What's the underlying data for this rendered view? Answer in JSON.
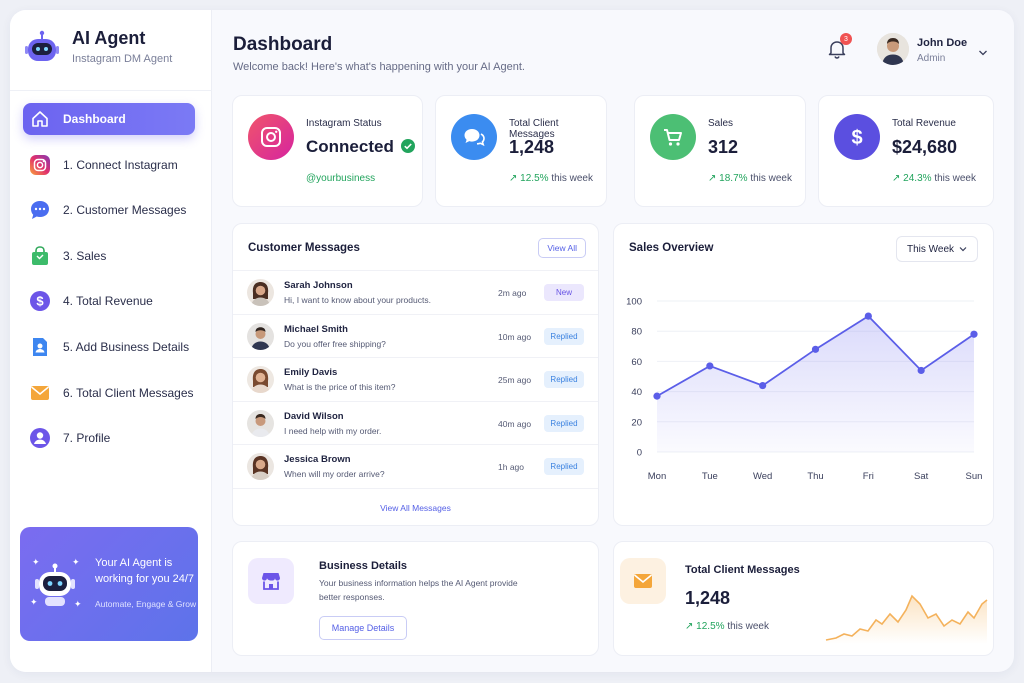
{
  "brand": {
    "title": "AI Agent",
    "subtitle": "Instagram DM Agent"
  },
  "sidebar": {
    "items": [
      {
        "label": "Dashboard",
        "icon": "home-icon",
        "active": true
      },
      {
        "label": "1. Connect Instagram",
        "icon": "instagram-icon",
        "active": false
      },
      {
        "label": "2. Customer Messages",
        "icon": "chat-bubble-icon",
        "active": false
      },
      {
        "label": "3. Sales",
        "icon": "shopping-bag-icon",
        "active": false
      },
      {
        "label": "4. Total Revenue",
        "icon": "dollar-icon",
        "active": false
      },
      {
        "label": "5. Add Business Details",
        "icon": "business-document-icon",
        "active": false
      },
      {
        "label": "6. Total Client Messages",
        "icon": "envelope-icon",
        "active": false
      },
      {
        "label": "7. Profile",
        "icon": "user-icon",
        "active": false
      }
    ]
  },
  "promo": {
    "title": "Your AI Agent is working for you 24/7",
    "subtitle": "Automate, Engage & Grow"
  },
  "header": {
    "title": "Dashboard",
    "subtitle": "Welcome back! Here's what's happening with your AI Agent.",
    "notification_count": "3",
    "user_name": "John Doe",
    "user_role": "Admin"
  },
  "stats": {
    "instagram": {
      "label": "Instagram Status",
      "value": "Connected",
      "handle": "@yourbusiness"
    },
    "messages": {
      "label": "Total Client Messages",
      "value": "1,248",
      "change": "12.5%",
      "period": "this week"
    },
    "sales": {
      "label": "Sales",
      "value": "312",
      "change": "18.7%",
      "period": "this week"
    },
    "revenue": {
      "label": "Total Revenue",
      "value": "$24,680",
      "change": "24.3%",
      "period": "this week"
    }
  },
  "customer_messages": {
    "title": "Customer Messages",
    "view_all_label": "View All",
    "footer_label": "View All Messages",
    "rows": [
      {
        "name": "Sarah Johnson",
        "text": "Hi, I want to know about your products.",
        "time": "2m ago",
        "status": "New"
      },
      {
        "name": "Michael Smith",
        "text": "Do you offer free shipping?",
        "time": "10m ago",
        "status": "Replied"
      },
      {
        "name": "Emily Davis",
        "text": "What is the price of this item?",
        "time": "25m ago",
        "status": "Replied"
      },
      {
        "name": "David Wilson",
        "text": "I need help with my order.",
        "time": "40m ago",
        "status": "Replied"
      },
      {
        "name": "Jessica Brown",
        "text": "When will my order arrive?",
        "time": "1h ago",
        "status": "Replied"
      }
    ]
  },
  "sales_overview": {
    "title": "Sales Overview",
    "period_select": "This Week"
  },
  "chart_data": {
    "type": "area",
    "title": "Sales Overview",
    "categories": [
      "Mon",
      "Tue",
      "Wed",
      "Thu",
      "Fri",
      "Sat",
      "Sun"
    ],
    "values": [
      37,
      57,
      44,
      68,
      90,
      54,
      78
    ],
    "yticks": [
      0,
      20,
      40,
      60,
      80,
      100
    ],
    "ylim": [
      0,
      100
    ],
    "grid": true,
    "color": "#5b5ee8"
  },
  "business_details": {
    "title": "Business Details",
    "description": "Your business information helps the AI Agent provide better responses.",
    "button_label": "Manage Details"
  },
  "total_client_messages": {
    "title": "Total Client Messages",
    "value": "1,248",
    "change": "12.5%",
    "period": "this week"
  },
  "colors": {
    "accent": "#6c63f0",
    "instagram": "#e1306c",
    "messages_blue": "#3b8cf0",
    "sales_green": "#4cbf74",
    "revenue_purple": "#5b4fe0",
    "positive": "#22a45d",
    "orange": "#f4a63a"
  }
}
